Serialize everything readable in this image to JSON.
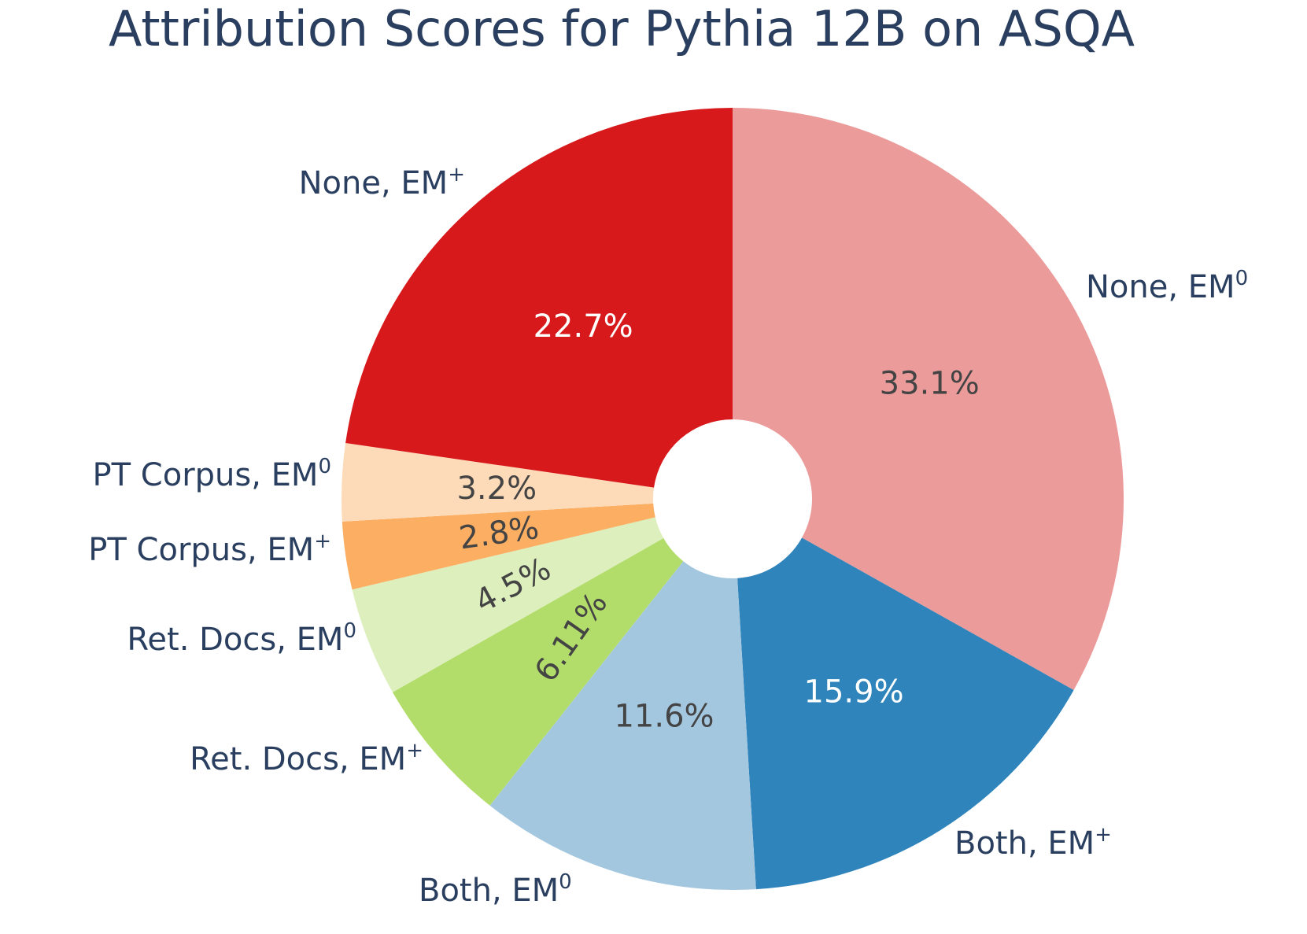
{
  "chart_data": {
    "type": "pie",
    "title": "Attribution Scores for Pythia 12B on ASQA",
    "hole": true,
    "direction": "clockwise",
    "start": "12 o'clock",
    "slices": [
      {
        "label": "None",
        "sup": "0",
        "value": 33.1,
        "text": "33.1%",
        "color": "#ec9b9b",
        "text_color": "#444444"
      },
      {
        "label": "Both",
        "sup": "+",
        "value": 15.9,
        "text": "15.9%",
        "color": "#2e84bb",
        "text_color": "#ffffff"
      },
      {
        "label": "Both",
        "sup": "0",
        "value": 11.6,
        "text": "11.6%",
        "color": "#a4c7e0",
        "text_color": "#444444"
      },
      {
        "label": "Ret. Docs",
        "sup": "+",
        "value": 6.11,
        "text": "6.11%",
        "color": "#b3dd6b",
        "text_color": "#444444"
      },
      {
        "label": "Ret. Docs",
        "sup": "0",
        "value": 4.5,
        "text": "4.5%",
        "color": "#ddefbd",
        "text_color": "#444444"
      },
      {
        "label": "PT Corpus",
        "sup": "+",
        "value": 2.8,
        "text": "2.8%",
        "color": "#fcae63",
        "text_color": "#444444"
      },
      {
        "label": "PT Corpus",
        "sup": "0",
        "value": 3.2,
        "text": "3.2%",
        "color": "#fddbb9",
        "text_color": "#444444"
      },
      {
        "label": "None",
        "sup": "+",
        "value": 22.7,
        "text": "22.7%",
        "color": "#d7191c",
        "text_color": "#ffffff"
      }
    ]
  }
}
